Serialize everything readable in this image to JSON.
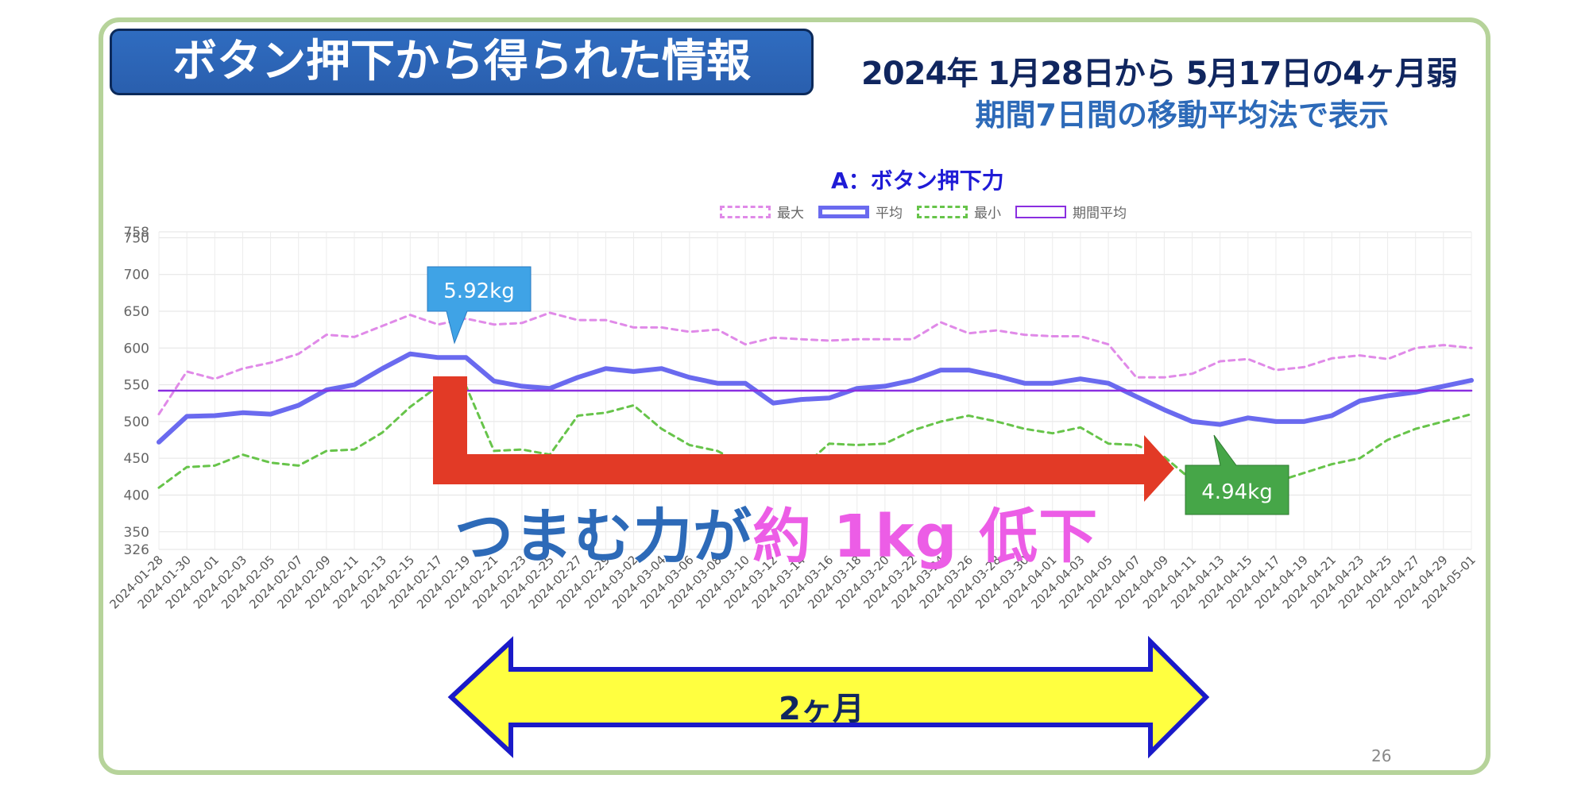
{
  "slide": {
    "title": "ボタン押下から得られた情報",
    "period": "2024年 1月28日から 5月17日の4ヶ月弱",
    "method": "期間7日間の移動平均法で表示",
    "decline_part1": "つまむ力が",
    "decline_part2": "約 1kg 低下",
    "span_label": "2ヶ月",
    "page_number": "26",
    "colors": {
      "title_bg": "#2f6cc0",
      "arrow_red": "#e23a26",
      "arrow_yellow": "#ffff40",
      "arrow_outline": "#1a1ac8",
      "callout_blue": "#3fa3e6",
      "callout_green": "#46a648",
      "frame": "#b6d39a"
    }
  },
  "chart_data": {
    "type": "line",
    "title": "A：ボタン押下力",
    "legend": [
      "最大",
      "平均",
      "最小",
      "期間平均"
    ],
    "legend_position": "top-center",
    "grid": true,
    "ylim": [
      326,
      758
    ],
    "yticks": [
      326,
      350,
      400,
      450,
      500,
      550,
      600,
      650,
      700,
      750,
      758
    ],
    "x_labels": [
      "2024-01-28",
      "2024-01-30",
      "2024-02-01",
      "2024-02-03",
      "2024-02-05",
      "2024-02-07",
      "2024-02-09",
      "2024-02-11",
      "2024-02-13",
      "2024-02-15",
      "2024-02-17",
      "2024-02-19",
      "2024-02-21",
      "2024-02-23",
      "2024-02-25",
      "2024-02-27",
      "2024-02-29",
      "2024-03-02",
      "2024-03-04",
      "2024-03-06",
      "2024-03-08",
      "2024-03-10",
      "2024-03-12",
      "2024-03-14",
      "2024-03-16",
      "2024-03-18",
      "2024-03-20",
      "2024-03-22",
      "2024-03-24",
      "2024-03-26",
      "2024-03-28",
      "2024-03-30",
      "2024-04-01",
      "2024-04-03",
      "2024-04-05",
      "2024-04-07",
      "2024-04-09",
      "2024-04-11",
      "2024-04-13",
      "2024-04-15",
      "2024-04-17",
      "2024-04-19",
      "2024-04-21",
      "2024-04-23",
      "2024-04-25",
      "2024-04-27",
      "2024-04-29",
      "2024-05-01"
    ],
    "series": [
      {
        "name": "最大",
        "style": "dashed",
        "color": "#e08ae8",
        "values": [
          510,
          568,
          558,
          572,
          580,
          592,
          618,
          615,
          630,
          645,
          632,
          640,
          632,
          634,
          648,
          638,
          638,
          628,
          628,
          622,
          625,
          605,
          614,
          612,
          610,
          612,
          612,
          612,
          635,
          620,
          624,
          618,
          616,
          616,
          605,
          560,
          560,
          565,
          582,
          585,
          570,
          574,
          586,
          590,
          585,
          600,
          604,
          600
        ]
      },
      {
        "name": "平均",
        "style": "solid",
        "color": "#6a6aef",
        "values": [
          472,
          507,
          508,
          512,
          510,
          522,
          543,
          550,
          572,
          592,
          587,
          587,
          555,
          548,
          545,
          560,
          572,
          568,
          572,
          560,
          552,
          552,
          525,
          530,
          532,
          545,
          548,
          556,
          570,
          570,
          562,
          552,
          552,
          558,
          552,
          534,
          516,
          500,
          496,
          505,
          500,
          500,
          508,
          528,
          535,
          540,
          548,
          556
        ]
      },
      {
        "name": "最小",
        "style": "dashed",
        "color": "#67c44a",
        "values": [
          410,
          438,
          440,
          455,
          444,
          440,
          460,
          462,
          485,
          520,
          548,
          548,
          460,
          462,
          455,
          508,
          512,
          522,
          490,
          468,
          460,
          440,
          440,
          436,
          470,
          468,
          470,
          488,
          500,
          508,
          500,
          490,
          484,
          492,
          470,
          468,
          452,
          420,
          418,
          418,
          418,
          430,
          442,
          450,
          475,
          490,
          500,
          510
        ]
      },
      {
        "name": "期間平均",
        "style": "solid",
        "color": "#8a2ee0",
        "values": [
          542,
          542,
          542,
          542,
          542,
          542,
          542,
          542,
          542,
          542,
          542,
          542,
          542,
          542,
          542,
          542,
          542,
          542,
          542,
          542,
          542,
          542,
          542,
          542,
          542,
          542,
          542,
          542,
          542,
          542,
          542,
          542,
          542,
          542,
          542,
          542,
          542,
          542,
          542,
          542,
          542,
          542,
          542,
          542,
          542,
          542,
          542,
          542
        ]
      }
    ],
    "annotations": [
      {
        "text": "5.92kg",
        "x": "2024-02-17",
        "y": 592,
        "color": "#3fa3e6"
      },
      {
        "text": "4.94kg",
        "x": "2024-04-11",
        "y": 494,
        "color": "#46a648"
      }
    ]
  }
}
